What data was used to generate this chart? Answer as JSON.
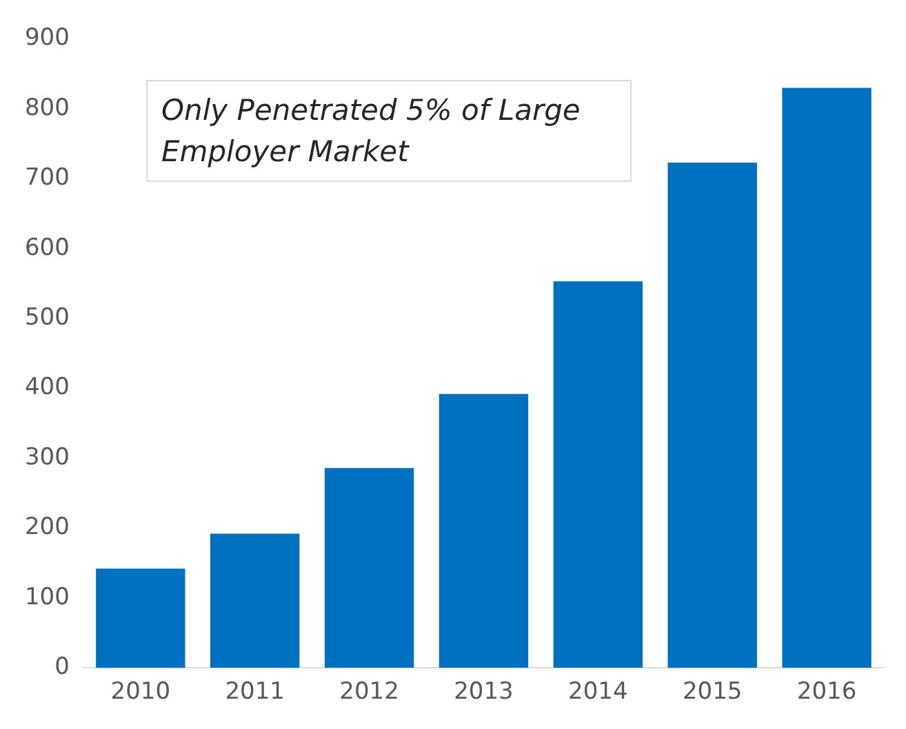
{
  "chart_data": {
    "type": "bar",
    "categories": [
      "2010",
      "2011",
      "2012",
      "2013",
      "2014",
      "2015",
      "2016"
    ],
    "values": [
      142,
      192,
      286,
      392,
      553,
      723,
      830
    ],
    "color": "#0070c0",
    "ylim": [
      0,
      900
    ],
    "yticks": [
      0,
      100,
      200,
      300,
      400,
      500,
      600,
      700,
      800,
      900
    ],
    "grid": false,
    "annotations": [
      "Only Penetrated 5% of Large Employer Market"
    ]
  }
}
